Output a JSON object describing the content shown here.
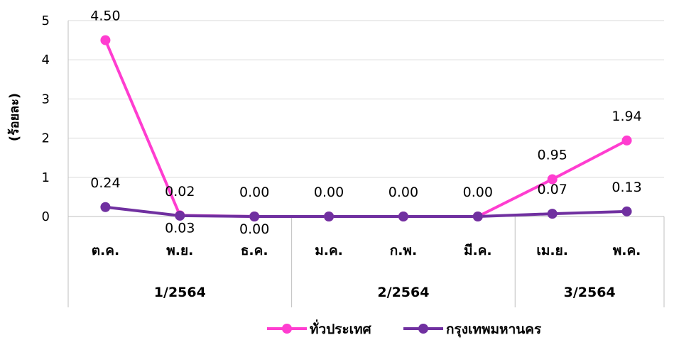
{
  "chart_data": {
    "type": "line",
    "ylabel": "(ร้อยละ)",
    "ylim": [
      0,
      5
    ],
    "yticks": [
      "0",
      "1",
      "2",
      "3",
      "4",
      "5"
    ],
    "grid": true,
    "legend_position": "bottom",
    "categories": [
      "ต.ค.",
      "พ.ย.",
      "ธ.ค.",
      "ม.ค.",
      "ก.พ.",
      "มี.ค.",
      "เม.ย.",
      "พ.ค."
    ],
    "groups": [
      {
        "label": "1/2564",
        "span": [
          0,
          2
        ]
      },
      {
        "label": "2/2564",
        "span": [
          3,
          5
        ]
      },
      {
        "label": "3/2564",
        "span": [
          6,
          7
        ]
      }
    ],
    "series": [
      {
        "name": "ทั่วประเทศ",
        "color": "#FF3DD0",
        "values": [
          4.5,
          0.03,
          0.0,
          0.0,
          0.0,
          0.0,
          0.95,
          1.94
        ],
        "labels": [
          "4.50",
          "0.03",
          "0.00",
          "",
          "",
          "",
          "0.95",
          "1.94"
        ]
      },
      {
        "name": "กรุงเทพมหานคร",
        "color": "#7030A0",
        "values": [
          0.24,
          0.02,
          0.0,
          0.0,
          0.0,
          0.0,
          0.07,
          0.13
        ],
        "labels": [
          "0.24",
          "0.02",
          "0.00",
          "0.00",
          "0.00",
          "0.00",
          "0.07",
          "0.13"
        ]
      }
    ]
  }
}
